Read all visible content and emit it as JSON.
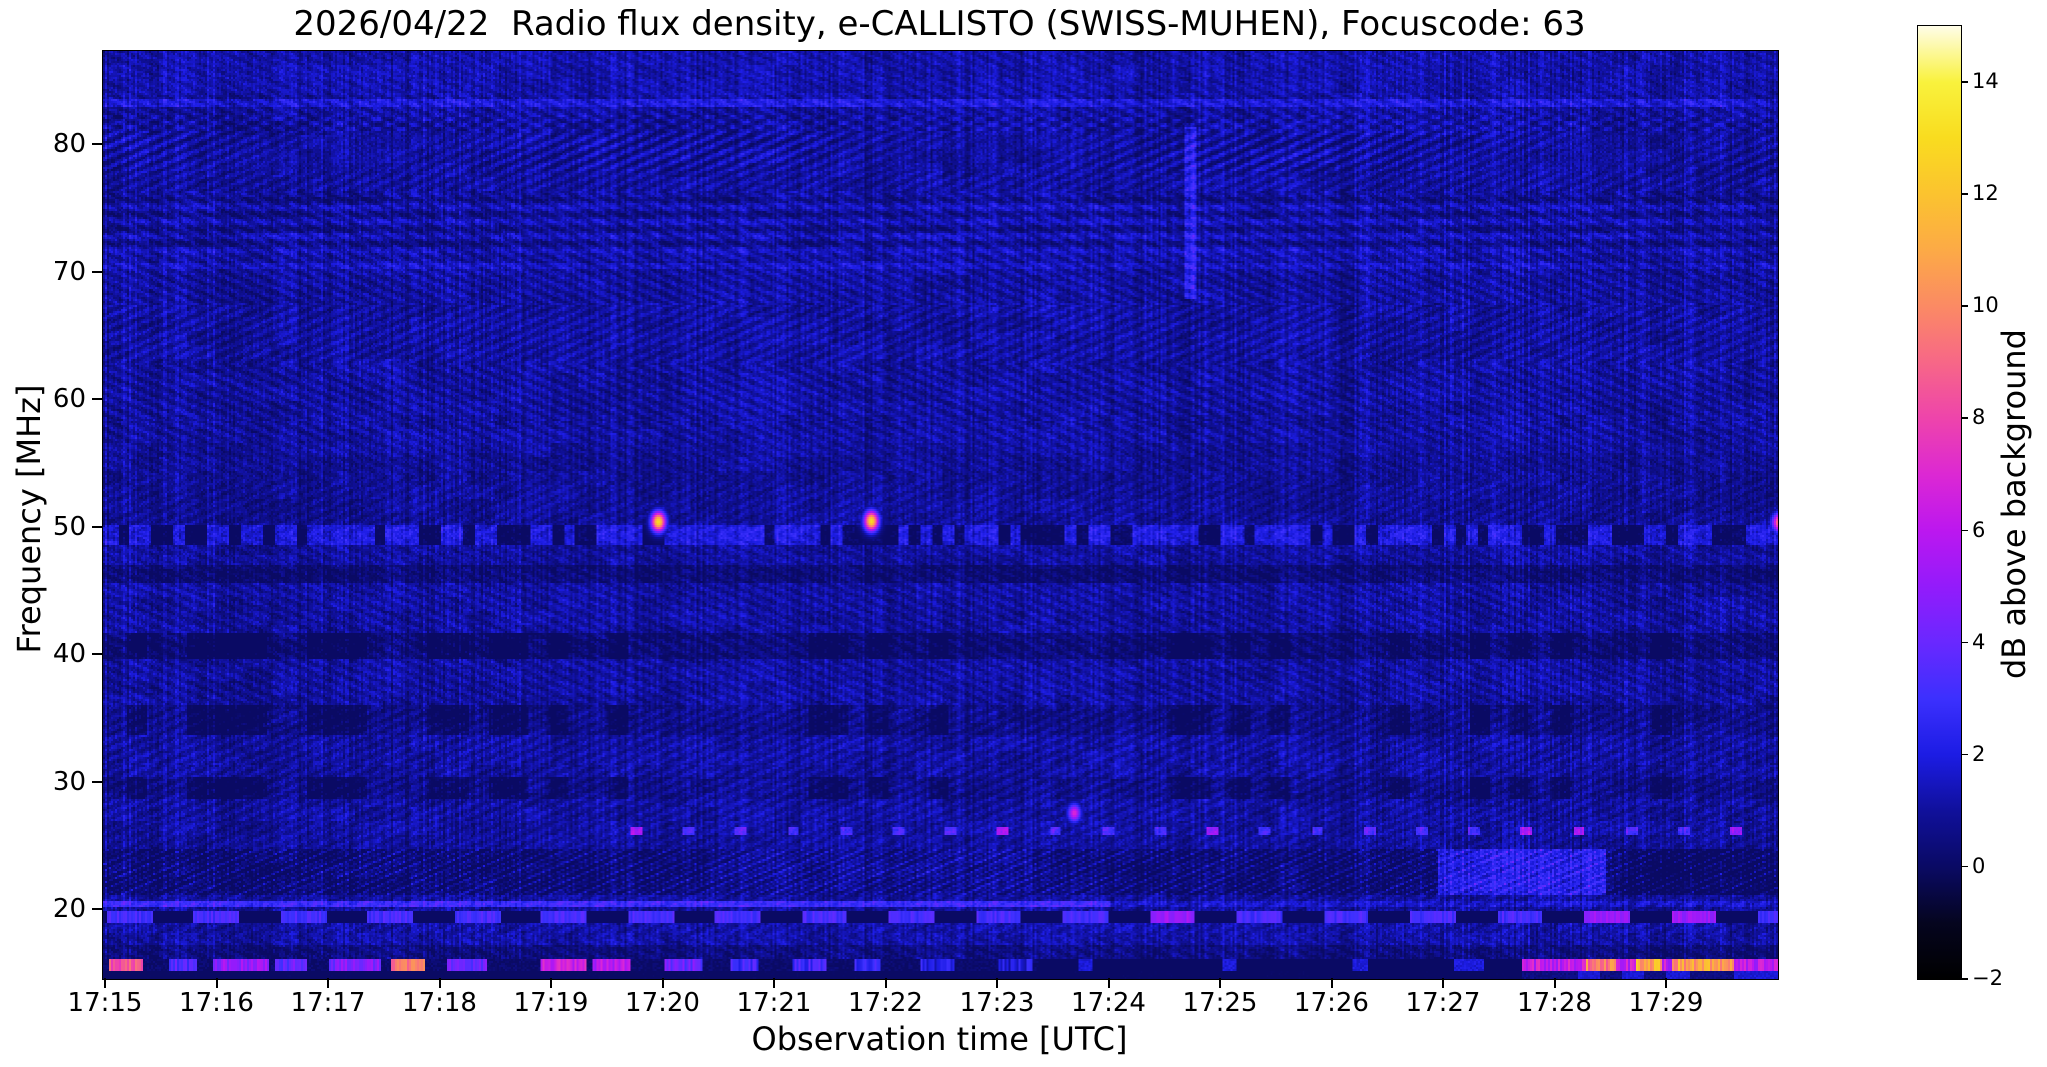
{
  "title": "2026/04/22  Radio flux density, e-CALLISTO (SWISS-MUHEN), Focuscode: 63",
  "chart_data": {
    "type": "heatmap",
    "subtype": "radio-spectrogram",
    "date": "2026/04/22",
    "station": "SWISS-MUHEN",
    "focuscode": "63",
    "xlabel": "Observation time [UTC]",
    "ylabel": "Frequency [MHz]",
    "x_start": "17:15",
    "x_end": "17:30",
    "x_ticks": [
      {
        "label": "17:15",
        "m": 0
      },
      {
        "label": "17:16",
        "m": 1
      },
      {
        "label": "17:17",
        "m": 2
      },
      {
        "label": "17:18",
        "m": 3
      },
      {
        "label": "17:19",
        "m": 4
      },
      {
        "label": "17:20",
        "m": 5
      },
      {
        "label": "17:21",
        "m": 6
      },
      {
        "label": "17:22",
        "m": 7
      },
      {
        "label": "17:23",
        "m": 8
      },
      {
        "label": "17:24",
        "m": 9
      },
      {
        "label": "17:25",
        "m": 10
      },
      {
        "label": "17:26",
        "m": 11
      },
      {
        "label": "17:27",
        "m": 12
      },
      {
        "label": "17:28",
        "m": 13
      },
      {
        "label": "17:29",
        "m": 14
      }
    ],
    "y_ticks": [
      {
        "label": "80",
        "f": 80
      },
      {
        "label": "70",
        "f": 70
      },
      {
        "label": "60",
        "f": 60
      },
      {
        "label": "50",
        "f": 50
      },
      {
        "label": "40",
        "f": 40
      },
      {
        "label": "30",
        "f": 30
      },
      {
        "label": "20",
        "f": 20
      }
    ],
    "y_range_mhz": [
      14.6,
      87.4
    ],
    "time_span_minutes": 15,
    "background_level_db": 1.0,
    "colorbar": {
      "label": "dB above background",
      "range": [
        -2,
        15
      ],
      "ticks": [
        {
          "label": "14",
          "v": 14
        },
        {
          "label": "12",
          "v": 12
        },
        {
          "label": "10",
          "v": 10
        },
        {
          "label": "8",
          "v": 8
        },
        {
          "label": "6",
          "v": 6
        },
        {
          "label": "4",
          "v": 4
        },
        {
          "label": "2",
          "v": 2
        },
        {
          "label": "0",
          "v": 0
        },
        {
          "label": "−2",
          "v": -2
        }
      ],
      "stops": [
        [
          -2,
          "#000000"
        ],
        [
          -1,
          "#05051f"
        ],
        [
          0,
          "#0a0a64"
        ],
        [
          1,
          "#10109b"
        ],
        [
          2,
          "#1c1ce4"
        ],
        [
          3,
          "#3c30fe"
        ],
        [
          4,
          "#6928ff"
        ],
        [
          5,
          "#931bfb"
        ],
        [
          6,
          "#bc17ef"
        ],
        [
          7,
          "#dc28d3"
        ],
        [
          8,
          "#ee44ab"
        ],
        [
          9,
          "#f76787"
        ],
        [
          10,
          "#fb8a64"
        ],
        [
          11,
          "#fcaa46"
        ],
        [
          12,
          "#fbc32f"
        ],
        [
          13,
          "#f9dc1f"
        ],
        [
          14,
          "#f9f23d"
        ],
        [
          15,
          "#fffde8"
        ]
      ]
    },
    "bands": [
      {
        "f0": 84.0,
        "f1": 87.5,
        "kind": "plain",
        "amp": 0.2
      },
      {
        "f0": 83.1,
        "f1": 83.7,
        "kind": "line",
        "amp": 0.9,
        "tmax": 15.1
      },
      {
        "f0": 78.0,
        "f1": 82.5,
        "kind": "diag",
        "amp": 0.45
      },
      {
        "f0": 71.5,
        "f1": 76.0,
        "kind": "hstripes",
        "amp": 0.5
      },
      {
        "f0": 70.3,
        "f1": 70.8,
        "kind": "line",
        "amp": 0.5,
        "tmax": 15.1
      },
      {
        "f0": 50.5,
        "f1": 56.0,
        "kind": "plain",
        "amp": -0.15
      },
      {
        "f0": 48.7,
        "f1": 50.3,
        "kind": "mottle",
        "amp": 1.0
      },
      {
        "f0": 45.8,
        "f1": 47.2,
        "kind": "plain",
        "amp": -0.7
      },
      {
        "f0": 39.8,
        "f1": 41.8,
        "kind": "mottle_dark",
        "amp": -0.7
      },
      {
        "f0": 33.8,
        "f1": 36.2,
        "kind": "mottle_dark",
        "amp": -0.35
      },
      {
        "f0": 28.8,
        "f1": 30.6,
        "kind": "mottle_dark",
        "amp": -0.3
      },
      {
        "f0": 25.9,
        "f1": 26.6,
        "kind": "dash_bright",
        "amp": 2.3
      },
      {
        "f0": 21.2,
        "f1": 24.9,
        "kind": "hatch_dark",
        "amp": -0.9
      },
      {
        "f0": 20.25,
        "f1": 20.75,
        "kind": "line",
        "amp": 2.0,
        "tmax": 9.0
      },
      {
        "f0": 19.0,
        "f1": 20.0,
        "kind": "dash_alt",
        "amp": 3.2
      },
      {
        "f0": 17.4,
        "f1": 19.0,
        "kind": "plain",
        "amp": 0.1
      },
      {
        "f0": 16.3,
        "f1": 17.4,
        "kind": "plain",
        "amp": -0.5
      },
      {
        "f0": 15.3,
        "f1": 16.3,
        "kind": "bottom_feature",
        "amp": 0
      },
      {
        "f0": 14.5,
        "f1": 15.3,
        "kind": "bottom_dark",
        "amp": 0
      }
    ],
    "points": [
      {
        "t": 4.95,
        "f": 50.55,
        "peak": 13,
        "st": 0.045,
        "sf": 0.55
      },
      {
        "t": 6.86,
        "f": 50.6,
        "peak": 13,
        "st": 0.045,
        "sf": 0.55
      },
      {
        "t": 8.68,
        "f": 27.7,
        "peak": 7,
        "st": 0.04,
        "sf": 0.5
      },
      {
        "t": 15.02,
        "f": 50.5,
        "peak": 11,
        "st": 0.05,
        "sf": 0.5
      }
    ],
    "vstreaks": [
      {
        "t": 9.72,
        "f0": 68.0,
        "f1": 81.5,
        "w": 0.06,
        "amp": 1.6
      }
    ],
    "bottom_segments": [
      [
        0.02,
        0.33,
        8.5
      ],
      [
        0.55,
        0.8,
        3.5
      ],
      [
        0.95,
        1.45,
        5.0
      ],
      [
        1.5,
        1.8,
        4.0
      ],
      [
        2.0,
        2.45,
        4.5
      ],
      [
        2.55,
        2.85,
        9.5
      ],
      [
        3.05,
        3.4,
        4.0
      ],
      [
        3.9,
        4.3,
        6.5
      ],
      [
        4.35,
        4.7,
        6.0
      ],
      [
        5.0,
        5.35,
        4.0
      ],
      [
        5.6,
        5.85,
        3.0
      ],
      [
        6.15,
        6.45,
        3.0
      ],
      [
        6.7,
        6.95,
        2.5
      ],
      [
        7.3,
        7.6,
        2.2
      ],
      [
        8.0,
        8.3,
        2.0
      ]
    ],
    "bottom_bright_from": 12.7,
    "bottom_hotspots": [
      [
        13.28,
        13.55,
        3.5
      ],
      [
        13.72,
        13.95,
        5.0
      ],
      [
        14.05,
        14.6,
        4.5
      ]
    ]
  }
}
